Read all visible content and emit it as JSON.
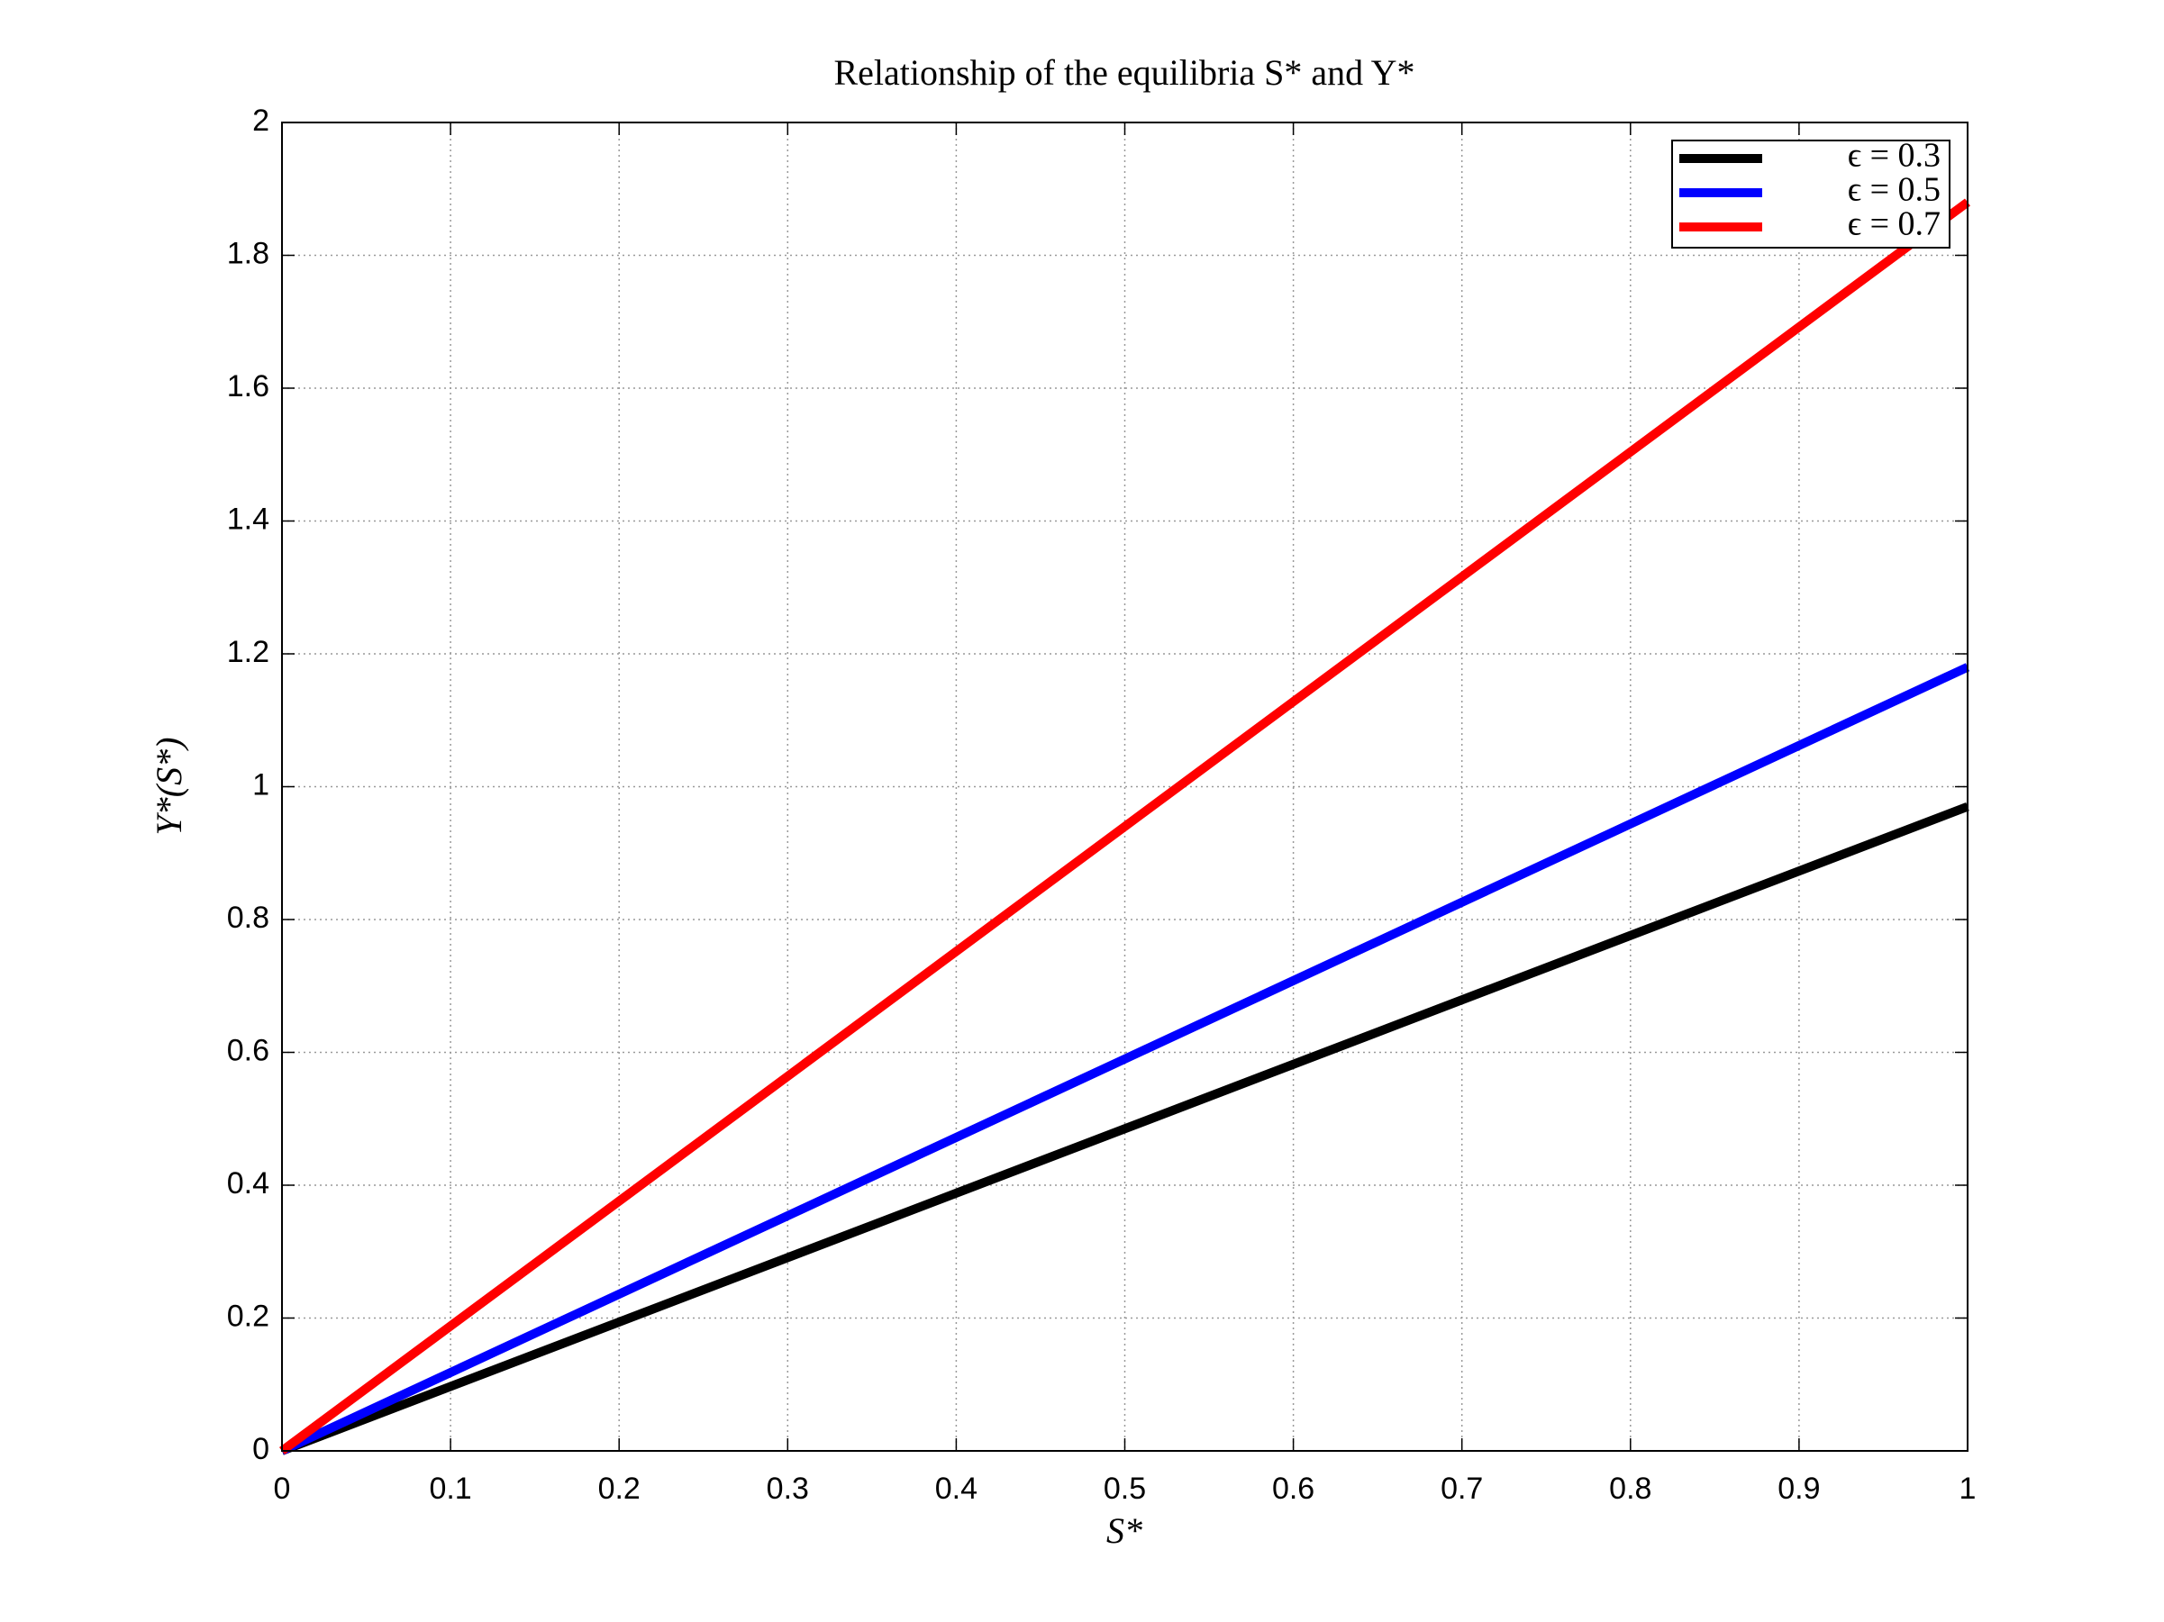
{
  "chart_data": {
    "type": "line",
    "title": "Relationship of the equilibria S* and Y*",
    "x_label": "S*",
    "y_label": "Y*(S*)",
    "x": [
      0,
      0.5,
      1
    ],
    "series": [
      {
        "name": "ϵ = 0.3",
        "color": "#000000",
        "values": [
          0,
          0.485,
          0.97
        ]
      },
      {
        "name": "ϵ = 0.5",
        "color": "#0000ff",
        "values": [
          0,
          0.59,
          1.18
        ]
      },
      {
        "name": "ϵ = 0.7",
        "color": "#ff0000",
        "values": [
          0,
          0.94,
          1.88
        ]
      }
    ],
    "xlim": [
      0,
      1
    ],
    "ylim": [
      0,
      2
    ],
    "xticks": [
      0,
      0.1,
      0.2,
      0.3,
      0.4,
      0.5,
      0.6,
      0.7,
      0.8,
      0.9,
      1
    ],
    "yticks": [
      0,
      0.2,
      0.4,
      0.6,
      0.8,
      1,
      1.2,
      1.4,
      1.6,
      1.8,
      2
    ],
    "grid": true,
    "legend": "upper right"
  }
}
